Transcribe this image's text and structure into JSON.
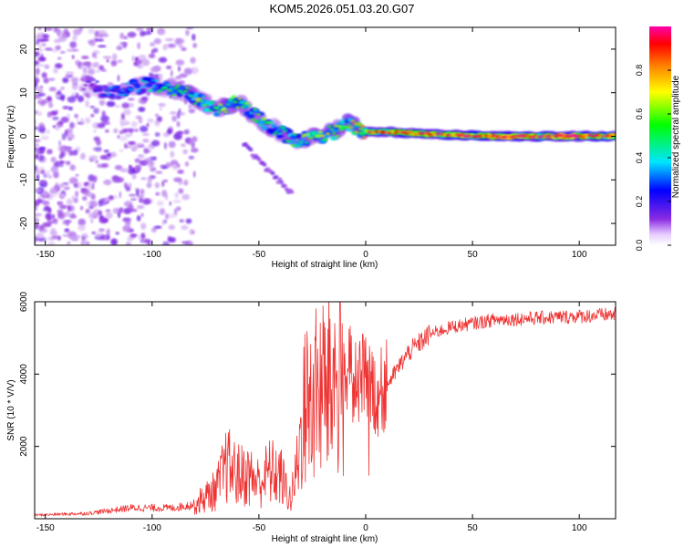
{
  "title": "KOM5.2026.051.03.20.G07",
  "chart_data": [
    {
      "type": "heatmap",
      "xlabel": "Height of straight line (km)",
      "ylabel": "Frequency (Hz)",
      "xlim": [
        -155,
        117
      ],
      "ylim": [
        -25,
        25
      ],
      "xticks": [
        -150,
        -100,
        -50,
        0,
        50,
        100
      ],
      "xtick_labels": [
        "-150",
        "-100",
        "-50",
        "0",
        "50",
        "100"
      ],
      "yticks": [
        -20,
        -10,
        0,
        10,
        20
      ],
      "ytick_labels": [
        "-20",
        "-10",
        "0",
        "10",
        "20"
      ],
      "colorbar": {
        "label": "Normalized spectral amplitude",
        "range": [
          0,
          1
        ],
        "ticks": [
          0,
          0.2,
          0.4,
          0.6,
          0.8
        ],
        "tick_labels": [
          "0.0",
          "0.2",
          "0.4",
          "0.6",
          "0.8"
        ],
        "colormap": [
          "#ffffff",
          "#8a2be2",
          "#0000ff",
          "#00e5ff",
          "#00ff00",
          "#ffff00",
          "#ff8000",
          "#ff0000",
          "#ff00aa"
        ]
      },
      "ridge": {
        "x": [
          -130,
          -120,
          -110,
          -100,
          -90,
          -80,
          -70,
          -60,
          -50,
          -40,
          -33,
          -25,
          -15,
          -8,
          0,
          10,
          30,
          60,
          90,
          117
        ],
        "frequency": [
          12,
          10,
          11,
          12,
          11,
          9,
          6,
          8,
          4,
          1,
          -1,
          -0.5,
          1,
          3,
          1,
          1,
          0.5,
          0,
          0,
          0
        ],
        "amplitude": [
          0.15,
          0.3,
          0.35,
          0.4,
          0.45,
          0.5,
          0.55,
          0.55,
          0.5,
          0.45,
          0.5,
          0.55,
          0.6,
          0.6,
          0.7,
          0.8,
          0.85,
          0.9,
          0.9,
          0.9
        ]
      }
    },
    {
      "type": "line",
      "xlabel": "Height of straight line (km)",
      "ylabel": "SNR (10 * V/V)",
      "xlim": [
        -155,
        117
      ],
      "ylim": [
        0,
        6000
      ],
      "xticks": [
        -150,
        -100,
        -50,
        0,
        50,
        100
      ],
      "xtick_labels": [
        "-150",
        "-100",
        "-50",
        "0",
        "50",
        "100"
      ],
      "yticks": [
        2000,
        4000,
        6000
      ],
      "ytick_labels": [
        "2000",
        "4000",
        "6000"
      ],
      "color": "#ee3333",
      "series": [
        {
          "name": "SNR",
          "x": [
            -155,
            -130,
            -110,
            -90,
            -80,
            -70,
            -65,
            -60,
            -55,
            -50,
            -45,
            -40,
            -35,
            -32,
            -30,
            -28,
            -25,
            -20,
            -15,
            -10,
            -5,
            0,
            5,
            10,
            20,
            30,
            40,
            50,
            60,
            80,
            100,
            117
          ],
          "values": [
            100,
            150,
            300,
            300,
            400,
            800,
            1500,
            1200,
            1200,
            1000,
            1300,
            1200,
            500,
            1500,
            2500,
            3200,
            3300,
            3600,
            3800,
            3900,
            4000,
            3800,
            3400,
            3700,
            4600,
            5100,
            5300,
            5400,
            5500,
            5550,
            5600,
            5650
          ]
        }
      ]
    }
  ]
}
